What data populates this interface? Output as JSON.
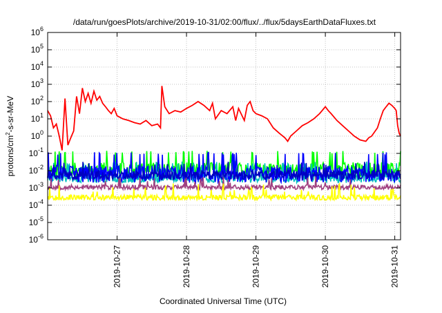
{
  "chart_data": {
    "type": "line",
    "title": "/data/run/goesPlots/archive/2019-10-31/02:00/flux/../flux/5daysEarthDataFluxes.txt",
    "xlabel": "Coordinated Universal Time (UTC)",
    "ylabel": {
      "prefix": "protons/cm",
      "superscript": "2",
      "suffix": "-s-sr-MeV"
    },
    "y_scale": "log",
    "ylim": [
      1e-06,
      1000000.0
    ],
    "y_ticks": [
      {
        "base": "10",
        "exp": "-6"
      },
      {
        "base": "10",
        "exp": "-5"
      },
      {
        "base": "10",
        "exp": "-4"
      },
      {
        "base": "10",
        "exp": "-3"
      },
      {
        "base": "10",
        "exp": "-2"
      },
      {
        "base": "10",
        "exp": "-1"
      },
      {
        "base": "10",
        "exp": "0"
      },
      {
        "base": "10",
        "exp": "1"
      },
      {
        "base": "10",
        "exp": "2"
      },
      {
        "base": "10",
        "exp": "3"
      },
      {
        "base": "10",
        "exp": "4"
      },
      {
        "base": "10",
        "exp": "5"
      },
      {
        "base": "10",
        "exp": "6"
      }
    ],
    "xlim": [
      "2019-10-26T00:00",
      "2019-10-31T02:00"
    ],
    "x_ticks": [
      "2019-10-27",
      "2019-10-28",
      "2019-10-29",
      "2019-10-30",
      "2019-10-31"
    ],
    "grid": true,
    "legend": "none",
    "colors": {
      "red": "#ff0000",
      "green": "#00ff00",
      "cyan": "#00c0c0",
      "blue": "#0000ff",
      "navy": "#0000c0",
      "purple": "#a04080",
      "yellow": "#ffff00"
    },
    "series": [
      {
        "color": "#ff0000",
        "data": [
          [
            "2019-10-26T00:00",
            30
          ],
          [
            "2019-10-26T01:00",
            15
          ],
          [
            "2019-10-26T02:00",
            3
          ],
          [
            "2019-10-26T03:00",
            5
          ],
          [
            "2019-10-26T04:00",
            1
          ],
          [
            "2019-10-26T05:00",
            0.15
          ],
          [
            "2019-10-26T06:00",
            150
          ],
          [
            "2019-10-26T07:00",
            0.3
          ],
          [
            "2019-10-26T08:00",
            0.8
          ],
          [
            "2019-10-26T09:00",
            2
          ],
          [
            "2019-10-26T10:00",
            200
          ],
          [
            "2019-10-26T11:00",
            20
          ],
          [
            "2019-10-26T12:00",
            600
          ],
          [
            "2019-10-26T13:00",
            100
          ],
          [
            "2019-10-26T14:00",
            300
          ],
          [
            "2019-10-26T15:00",
            80
          ],
          [
            "2019-10-26T16:00",
            400
          ],
          [
            "2019-10-26T17:00",
            120
          ],
          [
            "2019-10-26T18:00",
            200
          ],
          [
            "2019-10-26T19:00",
            80
          ],
          [
            "2019-10-26T20:00",
            50
          ],
          [
            "2019-10-26T21:00",
            30
          ],
          [
            "2019-10-26T22:00",
            20
          ],
          [
            "2019-10-26T23:00",
            40
          ],
          [
            "2019-10-27T00:00",
            15
          ],
          [
            "2019-10-27T02:00",
            10
          ],
          [
            "2019-10-27T04:00",
            8
          ],
          [
            "2019-10-27T06:00",
            6
          ],
          [
            "2019-10-27T08:00",
            5
          ],
          [
            "2019-10-27T10:00",
            8
          ],
          [
            "2019-10-27T12:00",
            4
          ],
          [
            "2019-10-27T14:00",
            5
          ],
          [
            "2019-10-27T15:00",
            3
          ],
          [
            "2019-10-27T15:30",
            800
          ],
          [
            "2019-10-27T16:30",
            50
          ],
          [
            "2019-10-27T18:00",
            20
          ],
          [
            "2019-10-27T20:00",
            30
          ],
          [
            "2019-10-27T22:00",
            25
          ],
          [
            "2019-10-28T00:00",
            40
          ],
          [
            "2019-10-28T02:00",
            60
          ],
          [
            "2019-10-28T04:00",
            100
          ],
          [
            "2019-10-28T06:00",
            60
          ],
          [
            "2019-10-28T08:00",
            30
          ],
          [
            "2019-10-28T09:00",
            80
          ],
          [
            "2019-10-28T10:00",
            10
          ],
          [
            "2019-10-28T12:00",
            30
          ],
          [
            "2019-10-28T14:00",
            20
          ],
          [
            "2019-10-28T16:00",
            50
          ],
          [
            "2019-10-28T17:00",
            8
          ],
          [
            "2019-10-28T18:00",
            40
          ],
          [
            "2019-10-28T20:00",
            8
          ],
          [
            "2019-10-28T21:00",
            60
          ],
          [
            "2019-10-28T22:00",
            100
          ],
          [
            "2019-10-28T23:00",
            30
          ],
          [
            "2019-10-29T00:00",
            20
          ],
          [
            "2019-10-29T02:00",
            15
          ],
          [
            "2019-10-29T04:00",
            10
          ],
          [
            "2019-10-29T06:00",
            3
          ],
          [
            "2019-10-29T08:00",
            1.5
          ],
          [
            "2019-10-29T10:00",
            0.8
          ],
          [
            "2019-10-29T11:00",
            0.5
          ],
          [
            "2019-10-29T12:00",
            1
          ],
          [
            "2019-10-29T14:00",
            2
          ],
          [
            "2019-10-29T16:00",
            4
          ],
          [
            "2019-10-29T18:00",
            6
          ],
          [
            "2019-10-29T20:00",
            10
          ],
          [
            "2019-10-29T22:00",
            20
          ],
          [
            "2019-10-30T00:00",
            50
          ],
          [
            "2019-10-30T01:00",
            30
          ],
          [
            "2019-10-30T02:00",
            20
          ],
          [
            "2019-10-30T04:00",
            8
          ],
          [
            "2019-10-30T06:00",
            4
          ],
          [
            "2019-10-30T08:00",
            2
          ],
          [
            "2019-10-30T10:00",
            1
          ],
          [
            "2019-10-30T12:00",
            0.6
          ],
          [
            "2019-10-30T14:00",
            0.5
          ],
          [
            "2019-10-30T15:00",
            0.8
          ],
          [
            "2019-10-30T16:00",
            1
          ],
          [
            "2019-10-30T18:00",
            3
          ],
          [
            "2019-10-30T19:00",
            10
          ],
          [
            "2019-10-30T20:00",
            30
          ],
          [
            "2019-10-30T21:00",
            50
          ],
          [
            "2019-10-30T22:00",
            80
          ],
          [
            "2019-10-30T23:00",
            60
          ],
          [
            "2019-10-31T00:00",
            40
          ],
          [
            "2019-10-31T00:30",
            30
          ],
          [
            "2019-10-31T01:00",
            4
          ],
          [
            "2019-10-31T01:30",
            1.5
          ],
          [
            "2019-10-31T02:00",
            1
          ]
        ]
      },
      {
        "color": "#00ff00",
        "band": [
          0.004,
          0.03
        ],
        "spikes": 0.1,
        "seed": 11
      },
      {
        "color": "#00c0c0",
        "band": [
          0.002,
          0.008
        ],
        "spikes": 0.02,
        "seed": 23
      },
      {
        "color": "#0000ff",
        "band": [
          0.002,
          0.02
        ],
        "spikes": 0.08,
        "seed": 37
      },
      {
        "color": "#0000c0",
        "band": [
          0.003,
          0.01
        ],
        "spikes": 0.02,
        "seed": 41
      },
      {
        "color": "#a04080",
        "band": [
          0.0008,
          0.0015
        ],
        "spikes": 0.002,
        "seed": 53
      },
      {
        "color": "#ffff00",
        "band": [
          0.0002,
          0.0004
        ],
        "spikes": 0.0006,
        "seed": 67
      }
    ]
  }
}
